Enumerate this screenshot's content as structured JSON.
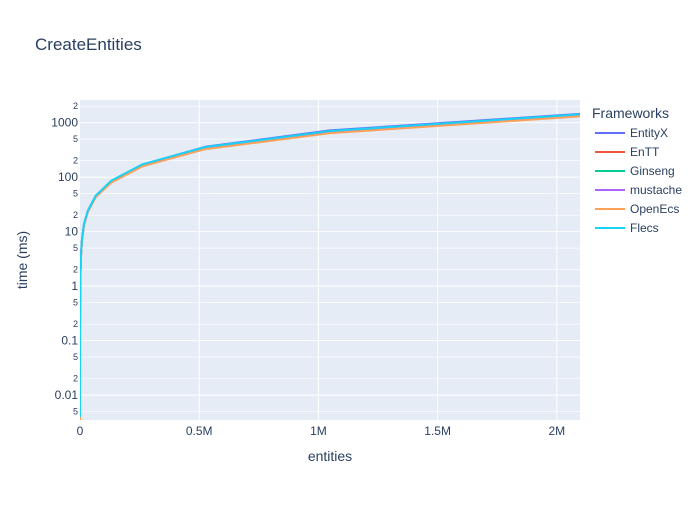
{
  "chart_data": {
    "type": "line",
    "title": "CreateEntities",
    "xlabel": "entities",
    "ylabel": "time (ms)",
    "x_scale": "linear",
    "y_scale": "log",
    "xlim": [
      0,
      2097152
    ],
    "ylim": [
      0.0035,
      2600
    ],
    "grid": true,
    "legend": {
      "title": "Frameworks",
      "position": "right"
    },
    "x_ticks": [
      {
        "value": 0,
        "label": "0"
      },
      {
        "value": 500000,
        "label": "0.5M"
      },
      {
        "value": 1000000,
        "label": "1M"
      },
      {
        "value": 1500000,
        "label": "1.5M"
      },
      {
        "value": 2000000,
        "label": "2M"
      }
    ],
    "y_major_ticks": [
      {
        "value": 0.01,
        "label": "0.01"
      },
      {
        "value": 0.1,
        "label": "0.1"
      },
      {
        "value": 1,
        "label": "1"
      },
      {
        "value": 10,
        "label": "10"
      },
      {
        "value": 100,
        "label": "100"
      },
      {
        "value": 1000,
        "label": "1000"
      }
    ],
    "y_minor_ticks": [
      {
        "value": 0.005,
        "label": "5"
      },
      {
        "value": 0.02,
        "label": "2"
      },
      {
        "value": 0.05,
        "label": "5"
      },
      {
        "value": 0.2,
        "label": "2"
      },
      {
        "value": 0.5,
        "label": "5"
      },
      {
        "value": 2,
        "label": "2"
      },
      {
        "value": 5,
        "label": "5"
      },
      {
        "value": 20,
        "label": "2"
      },
      {
        "value": 50,
        "label": "5"
      },
      {
        "value": 200,
        "label": "2"
      },
      {
        "value": 500,
        "label": "5"
      },
      {
        "value": 2000,
        "label": "2"
      }
    ],
    "x": [
      1,
      2,
      4,
      8,
      16,
      32,
      64,
      128,
      256,
      512,
      1024,
      2048,
      4096,
      8192,
      16384,
      32768,
      65536,
      131072,
      262144,
      524288,
      1048576,
      2097152
    ],
    "series": [
      {
        "name": "EntityX",
        "color": "#636efa",
        "values": [
          0.004,
          0.0052,
          0.0075,
          0.012,
          0.021,
          0.04,
          0.075,
          0.14,
          0.27,
          0.52,
          1.0,
          1.9,
          3.7,
          7.1,
          13.5,
          24,
          45,
          85,
          170,
          360,
          720,
          1450
        ]
      },
      {
        "name": "EnTT",
        "color": "#ef553b",
        "values": [
          0.0035,
          0.0045,
          0.0065,
          0.011,
          0.019,
          0.036,
          0.068,
          0.13,
          0.25,
          0.48,
          0.93,
          1.8,
          3.5,
          6.8,
          13,
          23,
          43,
          80,
          160,
          330,
          650,
          1320
        ]
      },
      {
        "name": "Ginseng",
        "color": "#00cc96",
        "values": [
          0.0038,
          0.0049,
          0.007,
          0.0115,
          0.02,
          0.038,
          0.07,
          0.135,
          0.26,
          0.5,
          0.96,
          1.85,
          3.6,
          6.9,
          13.2,
          23.5,
          44,
          82,
          164,
          340,
          670,
          1350
        ]
      },
      {
        "name": "mustache",
        "color": "#ab63fa",
        "values": [
          0.0039,
          0.005,
          0.0072,
          0.0118,
          0.0205,
          0.039,
          0.072,
          0.138,
          0.265,
          0.51,
          0.98,
          1.87,
          3.65,
          7.0,
          13.3,
          23.8,
          44.5,
          83,
          166,
          345,
          680,
          1380
        ]
      },
      {
        "name": "OpenEcs",
        "color": "#ffa15a",
        "values": [
          0.0036,
          0.0046,
          0.0066,
          0.0112,
          0.0193,
          0.0365,
          0.069,
          0.132,
          0.255,
          0.49,
          0.94,
          1.82,
          3.55,
          6.85,
          13.1,
          23.2,
          43.5,
          79,
          158,
          325,
          640,
          1300
        ]
      },
      {
        "name": "Flecs",
        "color": "#19d3f3",
        "values": [
          0.0041,
          0.0053,
          0.0076,
          0.0122,
          0.0212,
          0.041,
          0.076,
          0.142,
          0.272,
          0.53,
          1.01,
          1.92,
          3.75,
          7.2,
          13.6,
          24.3,
          45.5,
          86,
          172,
          355,
          700,
          1420
        ]
      }
    ]
  }
}
